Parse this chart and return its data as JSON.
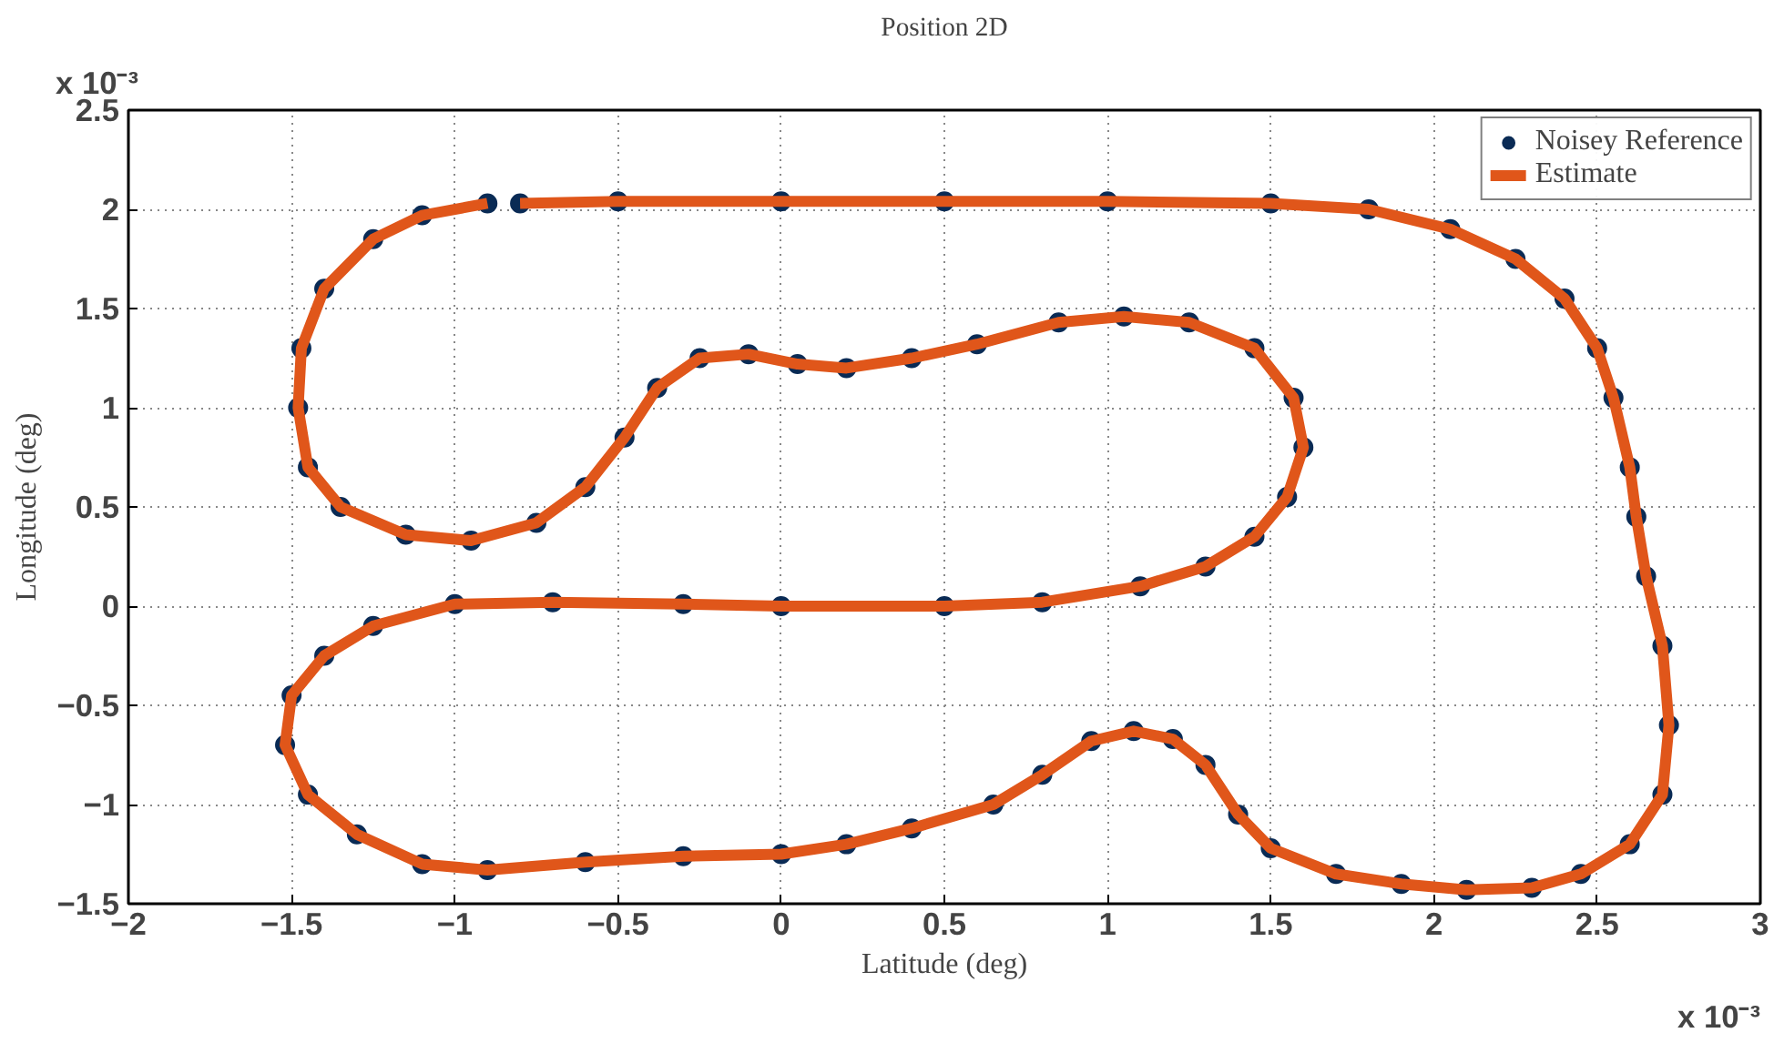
{
  "chart_data": {
    "type": "line",
    "title": "Position 2D",
    "xlabel": "Latitude (deg)",
    "ylabel": "Longitude (deg)",
    "annotations": [
      "x 10⁻³",
      "x 10⁻³"
    ],
    "xlim": [
      -2,
      3
    ],
    "xticks": [
      {
        "value": -2,
        "label": "−2"
      },
      {
        "value": -1.5,
        "label": "−1.5"
      },
      {
        "value": -1,
        "label": "−1"
      },
      {
        "value": -0.5,
        "label": "−0.5"
      },
      0,
      0.5,
      1,
      1.5,
      2,
      2.5,
      3
    ],
    "ylim": [
      -1.5,
      2.5
    ],
    "yticks": [
      {
        "value": -1.5,
        "label": "−1.5"
      },
      {
        "value": -1,
        "label": "−1"
      },
      {
        "value": -0.5,
        "label": "−0.5"
      },
      0,
      0.5,
      1,
      1.5,
      2,
      2.5
    ],
    "grid": true,
    "legend": "top right",
    "line_style": "solid",
    "series": [
      {
        "name": "Noisey Reference",
        "type": "scatter",
        "marker": "circle",
        "color": "#0a2b55",
        "x": [
          -0.8,
          -0.5,
          0,
          0.5,
          1.0,
          1.5,
          1.8,
          2.05,
          2.25,
          2.4,
          2.5,
          2.55,
          2.6,
          2.62,
          2.65,
          2.7,
          2.72,
          2.7,
          2.6,
          2.45,
          2.3,
          2.1,
          1.9,
          1.7,
          1.5,
          1.4,
          1.3,
          1.2,
          1.08,
          0.95,
          0.8,
          0.65,
          0.4,
          0.2,
          0,
          -0.3,
          -0.6,
          -0.9,
          -1.1,
          -1.3,
          -1.45,
          -1.52,
          -1.5,
          -1.4,
          -1.25,
          -1.0,
          -0.7,
          -0.3,
          0,
          0.5,
          0.8,
          1.1,
          1.3,
          1.45,
          1.55,
          1.6,
          1.57,
          1.45,
          1.25,
          1.05,
          0.85,
          0.6,
          0.4,
          0.2,
          0.05,
          -0.1,
          -0.25,
          -0.38,
          -0.48,
          -0.6,
          -0.75,
          -0.95,
          -1.15,
          -1.35,
          -1.45,
          -1.48,
          -1.47,
          -1.4,
          -1.25,
          -1.1,
          -0.9
        ],
        "values": [
          2.03,
          2.04,
          2.04,
          2.04,
          2.04,
          2.03,
          2.0,
          1.9,
          1.75,
          1.55,
          1.3,
          1.05,
          0.7,
          0.45,
          0.15,
          -0.2,
          -0.6,
          -0.95,
          -1.2,
          -1.35,
          -1.42,
          -1.43,
          -1.4,
          -1.35,
          -1.22,
          -1.05,
          -0.8,
          -0.67,
          -0.63,
          -0.68,
          -0.85,
          -1.0,
          -1.12,
          -1.2,
          -1.25,
          -1.26,
          -1.29,
          -1.33,
          -1.3,
          -1.15,
          -0.95,
          -0.7,
          -0.45,
          -0.25,
          -0.1,
          0.01,
          0.02,
          0.01,
          0.0,
          0.0,
          0.02,
          0.1,
          0.2,
          0.35,
          0.55,
          0.8,
          1.05,
          1.3,
          1.43,
          1.46,
          1.43,
          1.32,
          1.25,
          1.2,
          1.22,
          1.27,
          1.25,
          1.1,
          0.85,
          0.6,
          0.42,
          0.33,
          0.36,
          0.5,
          0.7,
          1.0,
          1.3,
          1.6,
          1.85,
          1.97,
          2.03
        ]
      },
      {
        "name": "Estimate",
        "type": "line",
        "color": "#e0561a",
        "x": [
          -0.8,
          -0.5,
          0,
          0.5,
          1.0,
          1.5,
          1.8,
          2.05,
          2.25,
          2.4,
          2.5,
          2.55,
          2.6,
          2.62,
          2.65,
          2.7,
          2.72,
          2.7,
          2.6,
          2.45,
          2.3,
          2.1,
          1.9,
          1.7,
          1.5,
          1.4,
          1.3,
          1.2,
          1.08,
          0.95,
          0.8,
          0.65,
          0.4,
          0.2,
          0,
          -0.3,
          -0.6,
          -0.9,
          -1.1,
          -1.3,
          -1.45,
          -1.52,
          -1.5,
          -1.4,
          -1.25,
          -1.0,
          -0.7,
          -0.3,
          0,
          0.5,
          0.8,
          1.1,
          1.3,
          1.45,
          1.55,
          1.6,
          1.57,
          1.45,
          1.25,
          1.05,
          0.85,
          0.6,
          0.4,
          0.2,
          0.05,
          -0.1,
          -0.25,
          -0.38,
          -0.48,
          -0.6,
          -0.75,
          -0.95,
          -1.15,
          -1.35,
          -1.45,
          -1.48,
          -1.47,
          -1.4,
          -1.25,
          -1.1,
          -0.9
        ],
        "values": [
          2.03,
          2.04,
          2.04,
          2.04,
          2.04,
          2.03,
          2.0,
          1.9,
          1.75,
          1.55,
          1.3,
          1.05,
          0.7,
          0.45,
          0.15,
          -0.2,
          -0.6,
          -0.95,
          -1.2,
          -1.35,
          -1.42,
          -1.43,
          -1.4,
          -1.35,
          -1.22,
          -1.05,
          -0.8,
          -0.67,
          -0.63,
          -0.68,
          -0.85,
          -1.0,
          -1.12,
          -1.2,
          -1.25,
          -1.26,
          -1.29,
          -1.33,
          -1.3,
          -1.15,
          -0.95,
          -0.7,
          -0.45,
          -0.25,
          -0.1,
          0.01,
          0.02,
          0.01,
          0.0,
          0.0,
          0.02,
          0.1,
          0.2,
          0.35,
          0.55,
          0.8,
          1.05,
          1.3,
          1.43,
          1.46,
          1.43,
          1.32,
          1.25,
          1.2,
          1.22,
          1.27,
          1.25,
          1.1,
          0.85,
          0.6,
          0.42,
          0.33,
          0.36,
          0.5,
          0.7,
          1.0,
          1.3,
          1.6,
          1.85,
          1.97,
          2.03
        ]
      }
    ]
  }
}
